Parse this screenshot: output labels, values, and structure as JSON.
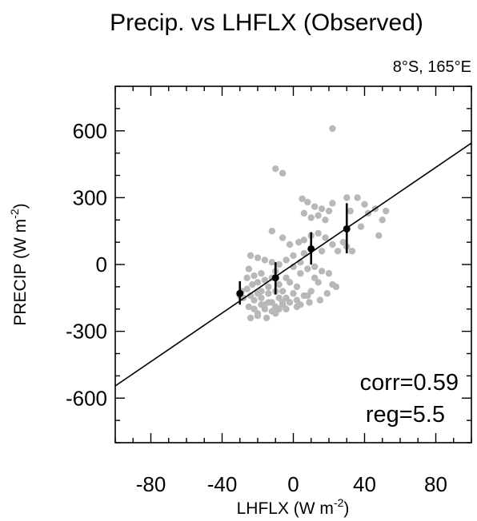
{
  "chart_data": {
    "type": "scatter",
    "title": "Precip. vs LHFLX (Observed)",
    "subtitle": "8°S, 165°E",
    "xlabel": "LHFLX (W m-2)",
    "ylabel": "PRECIP (W m-2)",
    "xlim": [
      -100,
      100
    ],
    "ylim": [
      -800,
      800
    ],
    "x_ticks": [
      -80,
      -40,
      0,
      40,
      80
    ],
    "y_ticks": [
      600,
      300,
      0,
      -300,
      -600
    ],
    "x_tick_labels": [
      "-80",
      "-40",
      "0",
      "40",
      "80"
    ],
    "y_tick_labels": [
      "600",
      "300",
      "0",
      "-300",
      "-600"
    ],
    "grid": false,
    "scatter_color": "#b8b8b8",
    "points": [
      [
        22,
        610
      ],
      [
        -10,
        430
      ],
      [
        -6,
        410
      ],
      [
        5,
        295
      ],
      [
        8,
        280
      ],
      [
        12,
        260
      ],
      [
        16,
        250
      ],
      [
        20,
        240
      ],
      [
        22,
        275
      ],
      [
        14,
        220
      ],
      [
        18,
        200
      ],
      [
        10,
        210
      ],
      [
        6,
        230
      ],
      [
        30,
        300
      ],
      [
        36,
        300
      ],
      [
        40,
        270
      ],
      [
        46,
        250
      ],
      [
        52,
        240
      ],
      [
        50,
        200
      ],
      [
        48,
        130
      ],
      [
        38,
        170
      ],
      [
        42,
        230
      ],
      [
        32,
        240
      ],
      [
        -12,
        150
      ],
      [
        -6,
        120
      ],
      [
        -2,
        90
      ],
      [
        3,
        100
      ],
      [
        6,
        110
      ],
      [
        10,
        130
      ],
      [
        14,
        140
      ],
      [
        18,
        120
      ],
      [
        22,
        90
      ],
      [
        25,
        60
      ],
      [
        28,
        100
      ],
      [
        30,
        80
      ],
      [
        33,
        60
      ],
      [
        16,
        60
      ],
      [
        6,
        50
      ],
      [
        0,
        40
      ],
      [
        -24,
        40
      ],
      [
        -20,
        30
      ],
      [
        -16,
        20
      ],
      [
        -12,
        10
      ],
      [
        -8,
        0
      ],
      [
        -4,
        20
      ],
      [
        0,
        -10
      ],
      [
        4,
        10
      ],
      [
        8,
        -20
      ],
      [
        12,
        -10
      ],
      [
        16,
        -30
      ],
      [
        20,
        -40
      ],
      [
        22,
        -90
      ],
      [
        24,
        -100
      ],
      [
        14,
        -80
      ],
      [
        10,
        -120
      ],
      [
        6,
        -140
      ],
      [
        2,
        -100
      ],
      [
        -25,
        -20
      ],
      [
        -22,
        -50
      ],
      [
        -20,
        -80
      ],
      [
        -18,
        -40
      ],
      [
        -16,
        -70
      ],
      [
        -14,
        -100
      ],
      [
        -12,
        -60
      ],
      [
        -10,
        -30
      ],
      [
        -8,
        -90
      ],
      [
        -6,
        -120
      ],
      [
        -4,
        -60
      ],
      [
        -2,
        -80
      ],
      [
        0,
        -130
      ],
      [
        -26,
        -110
      ],
      [
        -24,
        -140
      ],
      [
        -22,
        -160
      ],
      [
        -20,
        -130
      ],
      [
        -18,
        -150
      ],
      [
        -16,
        -180
      ],
      [
        -14,
        -130
      ],
      [
        -12,
        -170
      ],
      [
        -10,
        -120
      ],
      [
        -8,
        -150
      ],
      [
        -6,
        -170
      ],
      [
        -4,
        -150
      ],
      [
        -2,
        -170
      ],
      [
        2,
        -160
      ],
      [
        4,
        -180
      ],
      [
        8,
        -140
      ],
      [
        -25,
        -190
      ],
      [
        -22,
        -200
      ],
      [
        -20,
        -220
      ],
      [
        -18,
        -180
      ],
      [
        -16,
        -200
      ],
      [
        -12,
        -210
      ],
      [
        -10,
        -190
      ],
      [
        -8,
        -200
      ],
      [
        -6,
        -180
      ],
      [
        -24,
        -240
      ],
      [
        -20,
        -230
      ],
      [
        -15,
        -240
      ],
      [
        -10,
        -220
      ],
      [
        -14,
        -170
      ],
      [
        -18,
        -120
      ],
      [
        -23,
        -90
      ],
      [
        -26,
        -60
      ],
      [
        -28,
        -150
      ],
      [
        -29,
        -120
      ],
      [
        -30,
        -140
      ],
      [
        2,
        -190
      ],
      [
        -4,
        -200
      ],
      [
        9,
        -170
      ],
      [
        15,
        -160
      ],
      [
        19,
        -130
      ],
      [
        12,
        -60
      ],
      [
        4,
        -40
      ]
    ],
    "binned_means": [
      {
        "x": -30,
        "y": -130,
        "low": -180,
        "high": -75
      },
      {
        "x": -10,
        "y": -60,
        "low": -135,
        "high": 10
      },
      {
        "x": 10,
        "y": 70,
        "low": 0,
        "high": 145
      },
      {
        "x": 30,
        "y": 160,
        "low": 50,
        "high": 275
      }
    ],
    "regression_line": {
      "x": [
        -100,
        100
      ],
      "y": [
        -545,
        545
      ]
    },
    "annotations": [
      "corr=0.59",
      "reg=5.5"
    ]
  }
}
